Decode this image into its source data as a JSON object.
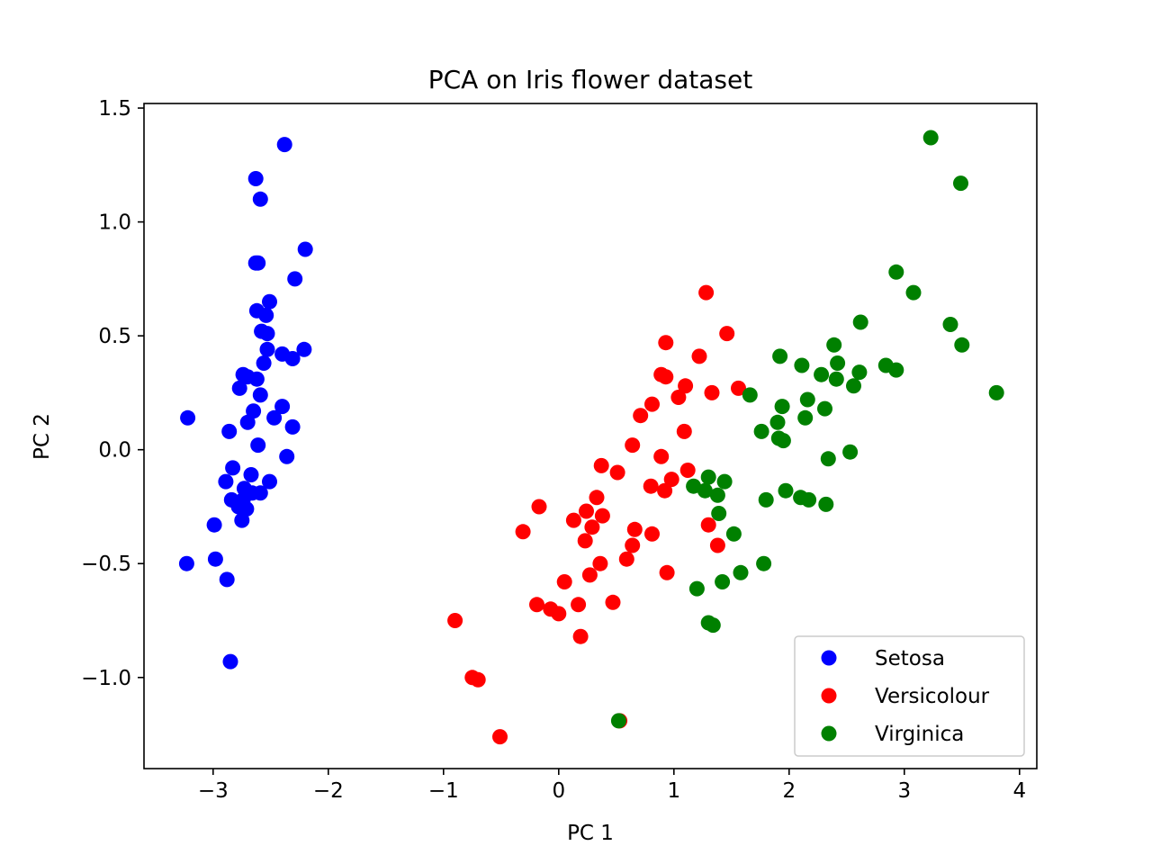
{
  "chart_data": {
    "type": "scatter",
    "title": "PCA on Iris flower dataset",
    "xlabel": "PC 1",
    "ylabel": "PC 2",
    "xlim": [
      -3.6,
      4.15
    ],
    "ylim": [
      -1.4,
      1.52
    ],
    "xticks": [
      -3,
      -2,
      -1,
      0,
      1,
      2,
      3,
      4
    ],
    "xtick_labels": [
      "−3",
      "−2",
      "−1",
      "0",
      "1",
      "2",
      "3",
      "4"
    ],
    "yticks": [
      -1.0,
      -0.5,
      0.0,
      0.5,
      1.0,
      1.5
    ],
    "ytick_labels": [
      "−1.0",
      "−0.5",
      "0.0",
      "0.5",
      "1.0",
      "1.5"
    ],
    "grid": false,
    "legend_position": "lower-right",
    "series": [
      {
        "name": "Setosa",
        "color": "#0000ff",
        "points": [
          [
            -2.38,
            1.34
          ],
          [
            -2.63,
            1.19
          ],
          [
            -2.59,
            1.1
          ],
          [
            -2.2,
            0.88
          ],
          [
            -2.63,
            0.82
          ],
          [
            -2.61,
            0.82
          ],
          [
            -2.29,
            0.75
          ],
          [
            -2.51,
            0.65
          ],
          [
            -2.62,
            0.61
          ],
          [
            -2.54,
            0.59
          ],
          [
            -2.58,
            0.52
          ],
          [
            -2.53,
            0.51
          ],
          [
            -2.53,
            0.44
          ],
          [
            -2.21,
            0.44
          ],
          [
            -2.4,
            0.42
          ],
          [
            -2.31,
            0.4
          ],
          [
            -2.56,
            0.38
          ],
          [
            -2.74,
            0.33
          ],
          [
            -2.7,
            0.32
          ],
          [
            -2.62,
            0.31
          ],
          [
            -2.77,
            0.27
          ],
          [
            -2.59,
            0.24
          ],
          [
            -2.4,
            0.19
          ],
          [
            -3.22,
            0.14
          ],
          [
            -2.65,
            0.17
          ],
          [
            -2.47,
            0.14
          ],
          [
            -2.7,
            0.12
          ],
          [
            -2.31,
            0.1
          ],
          [
            -2.86,
            0.08
          ],
          [
            -2.61,
            0.02
          ],
          [
            -2.36,
            -0.03
          ],
          [
            -2.83,
            -0.08
          ],
          [
            -2.67,
            -0.11
          ],
          [
            -2.89,
            -0.14
          ],
          [
            -2.51,
            -0.14
          ],
          [
            -2.73,
            -0.17
          ],
          [
            -2.59,
            -0.19
          ],
          [
            -2.66,
            -0.19
          ],
          [
            -2.84,
            -0.22
          ],
          [
            -2.74,
            -0.22
          ],
          [
            -2.78,
            -0.25
          ],
          [
            -2.71,
            -0.26
          ],
          [
            -2.75,
            -0.31
          ],
          [
            -2.99,
            -0.33
          ],
          [
            -3.23,
            -0.5
          ],
          [
            -2.98,
            -0.48
          ],
          [
            -2.88,
            -0.57
          ],
          [
            -2.85,
            -0.93
          ]
        ]
      },
      {
        "name": "Versicolour",
        "color": "#ff0000",
        "points": [
          [
            1.28,
            0.69
          ],
          [
            1.46,
            0.51
          ],
          [
            0.93,
            0.47
          ],
          [
            1.22,
            0.41
          ],
          [
            0.89,
            0.33
          ],
          [
            0.93,
            0.32
          ],
          [
            1.1,
            0.28
          ],
          [
            1.56,
            0.27
          ],
          [
            1.33,
            0.25
          ],
          [
            1.04,
            0.23
          ],
          [
            0.81,
            0.2
          ],
          [
            0.71,
            0.15
          ],
          [
            1.09,
            0.08
          ],
          [
            0.64,
            0.02
          ],
          [
            0.89,
            -0.03
          ],
          [
            0.37,
            -0.07
          ],
          [
            1.12,
            -0.09
          ],
          [
            0.51,
            -0.1
          ],
          [
            0.98,
            -0.13
          ],
          [
            0.8,
            -0.16
          ],
          [
            0.92,
            -0.18
          ],
          [
            0.33,
            -0.21
          ],
          [
            -0.17,
            -0.25
          ],
          [
            0.24,
            -0.27
          ],
          [
            0.13,
            -0.31
          ],
          [
            0.38,
            -0.29
          ],
          [
            0.29,
            -0.34
          ],
          [
            0.66,
            -0.35
          ],
          [
            1.3,
            -0.33
          ],
          [
            -0.31,
            -0.36
          ],
          [
            0.81,
            -0.37
          ],
          [
            0.23,
            -0.4
          ],
          [
            0.64,
            -0.42
          ],
          [
            1.38,
            -0.42
          ],
          [
            0.36,
            -0.5
          ],
          [
            0.59,
            -0.48
          ],
          [
            0.27,
            -0.55
          ],
          [
            0.94,
            -0.54
          ],
          [
            0.05,
            -0.58
          ],
          [
            -0.19,
            -0.68
          ],
          [
            0.17,
            -0.68
          ],
          [
            0.47,
            -0.67
          ],
          [
            -0.07,
            -0.7
          ],
          [
            0.0,
            -0.72
          ],
          [
            0.19,
            -0.82
          ],
          [
            -0.9,
            -0.75
          ],
          [
            -0.75,
            -1.0
          ],
          [
            -0.7,
            -1.01
          ],
          [
            -0.51,
            -1.26
          ],
          [
            0.53,
            -1.19
          ]
        ]
      },
      {
        "name": "Virginica",
        "color": "#008000",
        "points": [
          [
            3.23,
            1.37
          ],
          [
            3.49,
            1.17
          ],
          [
            2.93,
            0.78
          ],
          [
            3.08,
            0.69
          ],
          [
            2.62,
            0.56
          ],
          [
            3.4,
            0.55
          ],
          [
            2.39,
            0.46
          ],
          [
            3.5,
            0.46
          ],
          [
            1.92,
            0.41
          ],
          [
            2.11,
            0.37
          ],
          [
            2.42,
            0.38
          ],
          [
            2.84,
            0.37
          ],
          [
            2.93,
            0.35
          ],
          [
            2.61,
            0.34
          ],
          [
            2.28,
            0.33
          ],
          [
            2.41,
            0.31
          ],
          [
            2.56,
            0.28
          ],
          [
            3.8,
            0.25
          ],
          [
            1.66,
            0.24
          ],
          [
            2.16,
            0.22
          ],
          [
            1.94,
            0.19
          ],
          [
            2.31,
            0.18
          ],
          [
            2.14,
            0.14
          ],
          [
            1.9,
            0.12
          ],
          [
            1.76,
            0.08
          ],
          [
            1.91,
            0.05
          ],
          [
            1.95,
            0.04
          ],
          [
            2.53,
            -0.01
          ],
          [
            2.34,
            -0.04
          ],
          [
            1.3,
            -0.12
          ],
          [
            1.44,
            -0.14
          ],
          [
            1.17,
            -0.16
          ],
          [
            1.27,
            -0.18
          ],
          [
            1.97,
            -0.18
          ],
          [
            1.38,
            -0.2
          ],
          [
            2.1,
            -0.21
          ],
          [
            1.8,
            -0.22
          ],
          [
            2.17,
            -0.22
          ],
          [
            2.32,
            -0.24
          ],
          [
            1.39,
            -0.28
          ],
          [
            1.52,
            -0.37
          ],
          [
            1.78,
            -0.5
          ],
          [
            1.58,
            -0.54
          ],
          [
            1.42,
            -0.58
          ],
          [
            1.2,
            -0.61
          ],
          [
            1.3,
            -0.76
          ],
          [
            1.34,
            -0.77
          ],
          [
            0.52,
            -1.19
          ]
        ]
      }
    ]
  }
}
